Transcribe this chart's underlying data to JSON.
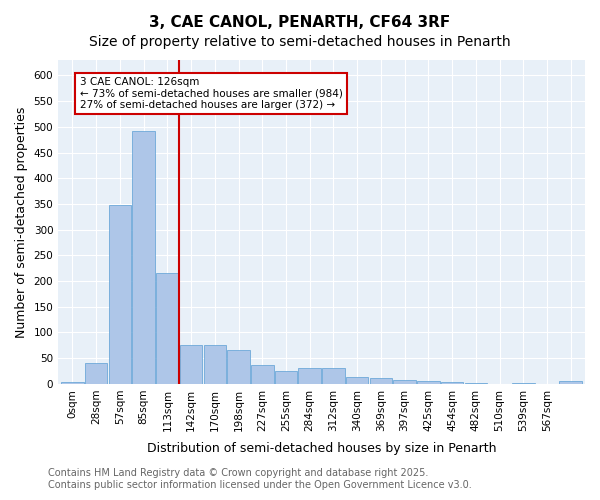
{
  "title": "3, CAE CANOL, PENARTH, CF64 3RF",
  "subtitle": "Size of property relative to semi-detached houses in Penarth",
  "xlabel": "Distribution of semi-detached houses by size in Penarth",
  "ylabel": "Number of semi-detached properties",
  "bar_values": [
    4,
    40,
    348,
    492,
    215,
    76,
    76,
    65,
    36,
    26,
    31,
    31,
    14,
    12,
    8,
    5,
    3,
    1,
    0,
    1,
    0,
    5
  ],
  "xtick_labels": [
    "0sqm",
    "28sqm",
    "57sqm",
    "85sqm",
    "113sqm",
    "142sqm",
    "170sqm",
    "198sqm",
    "227sqm",
    "255sqm",
    "284sqm",
    "312sqm",
    "340sqm",
    "369sqm",
    "397sqm",
    "425sqm",
    "454sqm",
    "482sqm",
    "510sqm",
    "539sqm",
    "567sqm",
    ""
  ],
  "bar_color": "#aec6e8",
  "bar_edge_color": "#5a9fd4",
  "vline_x": 4.475,
  "vline_color": "#cc0000",
  "annotation_title": "3 CAE CANOL: 126sqm",
  "annotation_line1": "← 73% of semi-detached houses are smaller (984)",
  "annotation_line2": "27% of semi-detached houses are larger (372) →",
  "annotation_box_color": "#cc0000",
  "ylim": [
    0,
    630
  ],
  "yticks": [
    0,
    50,
    100,
    150,
    200,
    250,
    300,
    350,
    400,
    450,
    500,
    550,
    600
  ],
  "footer_line1": "Contains HM Land Registry data © Crown copyright and database right 2025.",
  "footer_line2": "Contains public sector information licensed under the Open Government Licence v3.0.",
  "bg_color": "#e8f0f8",
  "fig_bg_color": "#ffffff",
  "grid_color": "#ffffff",
  "title_fontsize": 11,
  "subtitle_fontsize": 10,
  "axis_label_fontsize": 9,
  "tick_fontsize": 7.5,
  "footer_fontsize": 7
}
